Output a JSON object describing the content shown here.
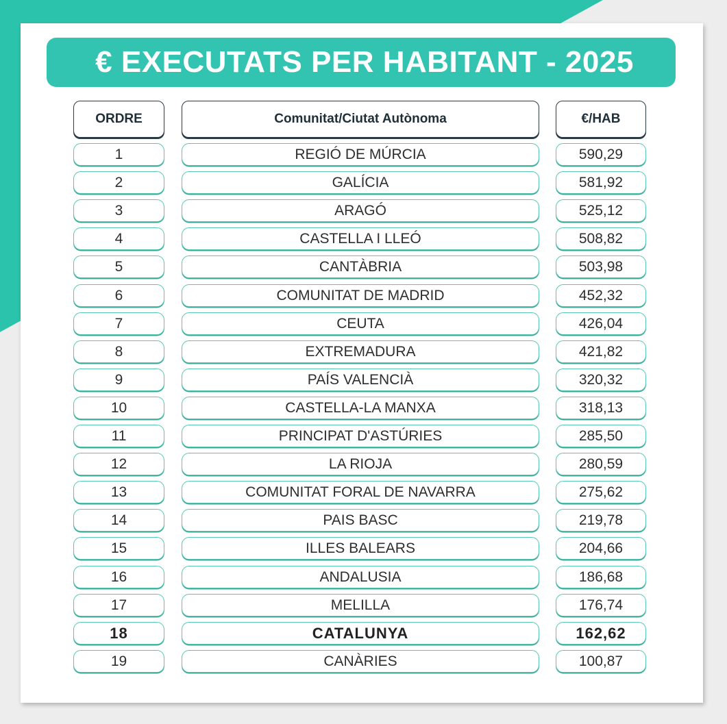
{
  "title": "€ EXECUTATS PER HABITANT - 2025",
  "headers": {
    "rank": "ORDRE",
    "region": "Comunitat/Ciutat Autònoma",
    "value": "€/HAB"
  },
  "rows": [
    {
      "rank": "1",
      "region": "REGIÓ DE MÚRCIA",
      "value": "590,29"
    },
    {
      "rank": "2",
      "region": "GALÍCIA",
      "value": "581,92"
    },
    {
      "rank": "3",
      "region": "ARAGÓ",
      "value": "525,12"
    },
    {
      "rank": "4",
      "region": "CASTELLA I LLEÓ",
      "value": "508,82"
    },
    {
      "rank": "5",
      "region": "CANTÀBRIA",
      "value": "503,98"
    },
    {
      "rank": "6",
      "region": "COMUNITAT DE MADRID",
      "value": "452,32"
    },
    {
      "rank": "7",
      "region": "CEUTA",
      "value": "426,04"
    },
    {
      "rank": "8",
      "region": "EXTREMADURA",
      "value": "421,82"
    },
    {
      "rank": "9",
      "region": "PAÍS VALENCIÀ",
      "value": "320,32"
    },
    {
      "rank": "10",
      "region": "CASTELLA-LA MANXA",
      "value": "318,13"
    },
    {
      "rank": "11",
      "region": "PRINCIPAT D'ASTÚRIES",
      "value": "285,50"
    },
    {
      "rank": "12",
      "region": "LA RIOJA",
      "value": "280,59"
    },
    {
      "rank": "13",
      "region": "COMUNITAT FORAL DE NAVARRA",
      "value": "275,62"
    },
    {
      "rank": "14",
      "region": "PAIS BASC",
      "value": "219,78"
    },
    {
      "rank": "15",
      "region": "ILLES BALEARS",
      "value": "204,66"
    },
    {
      "rank": "16",
      "region": "ANDALUSIA",
      "value": "186,68"
    },
    {
      "rank": "17",
      "region": "MELILLA",
      "value": "176,74"
    },
    {
      "rank": "18",
      "region": "CATALUNYA",
      "value": "162,62",
      "highlight": true
    },
    {
      "rank": "19",
      "region": "CANÀRIES",
      "value": "100,87"
    }
  ],
  "colors": {
    "accent": "#33c4b1",
    "cell_border": "#56c8b6",
    "header_border": "#2a3a44"
  }
}
